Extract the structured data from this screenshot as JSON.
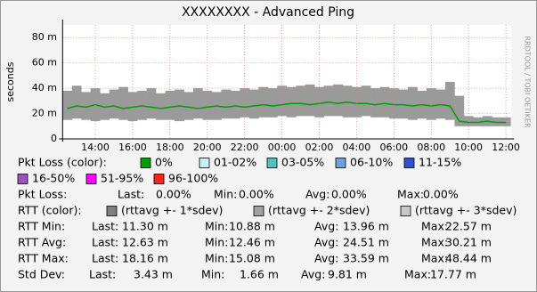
{
  "chart_data": {
    "type": "band-line",
    "title": "XXXXXXXX - Advanced Ping",
    "y_label": "seconds",
    "watermark": "RRDTOOL / TOBI OETIKER",
    "categories": [
      null,
      null,
      null,
      "14:00",
      null,
      null,
      null,
      "16:00",
      null,
      null,
      null,
      "18:00",
      null,
      null,
      null,
      "20:00",
      null,
      null,
      null,
      "22:00",
      null,
      null,
      null,
      "00:00",
      null,
      null,
      null,
      "02:00",
      null,
      null,
      null,
      "04:00",
      null,
      null,
      null,
      "06:00",
      null,
      null,
      null,
      "08:00",
      null,
      null,
      null,
      "10:00",
      null,
      null,
      null,
      "12:00"
    ],
    "ylim": [
      0,
      90
    ],
    "yticks": [
      {
        "value": 0,
        "label": "0"
      },
      {
        "value": 20,
        "label": "20 m"
      },
      {
        "value": 40,
        "label": "40 m"
      },
      {
        "value": 60,
        "label": "60 m"
      },
      {
        "value": 80,
        "label": "80 m"
      }
    ],
    "grid": true,
    "band": {
      "color": "#9a9a9a",
      "low": [
        15,
        16,
        15,
        14,
        15,
        16,
        15,
        14,
        15,
        16,
        15,
        15,
        14,
        15,
        16,
        15,
        15,
        16,
        16,
        17,
        16,
        17,
        17,
        18,
        17,
        18,
        18,
        17,
        18,
        18,
        17,
        17,
        18,
        17,
        17,
        16,
        16,
        15,
        16,
        15,
        16,
        15,
        10,
        10,
        10,
        10,
        10,
        10
      ],
      "high": [
        38,
        42,
        37,
        40,
        36,
        39,
        41,
        37,
        38,
        40,
        36,
        38,
        39,
        37,
        40,
        38,
        37,
        39,
        38,
        40,
        39,
        41,
        40,
        42,
        41,
        42,
        43,
        41,
        42,
        43,
        42,
        41,
        42,
        40,
        41,
        40,
        39,
        41,
        38,
        40,
        39,
        45,
        34,
        18,
        17,
        18,
        17,
        17
      ]
    },
    "line": {
      "color": "#00a000",
      "values": [
        24,
        26,
        25,
        27,
        25,
        26,
        24,
        25,
        26,
        25,
        24,
        25,
        26,
        25,
        24,
        25,
        26,
        25,
        26,
        25,
        26,
        27,
        26,
        27,
        28,
        28,
        27,
        28,
        29,
        28,
        29,
        28,
        28,
        27,
        28,
        27,
        27,
        26,
        27,
        26,
        27,
        26,
        14,
        13,
        13,
        14,
        13,
        13
      ]
    }
  },
  "legend": {
    "loss_title": "Pkt Loss (color):",
    "loss_items": [
      {
        "label": "0%",
        "color": "#00a000"
      },
      {
        "label": "01-02%",
        "color": "#c8f0f0"
      },
      {
        "label": "03-05%",
        "color": "#50c0c0"
      },
      {
        "label": "06-10%",
        "color": "#70a0e0"
      },
      {
        "label": "11-15%",
        "color": "#3050d0"
      },
      {
        "label": "16-50%",
        "color": "#a050c0"
      },
      {
        "label": "51-95%",
        "color": "#ff00ff"
      },
      {
        "label": "96-100%",
        "color": "#ff2020"
      }
    ],
    "rtt_title": "RTT (color):",
    "rtt_items": [
      {
        "label": "(rttavg +- 1*sdev)",
        "color": "#808080"
      },
      {
        "label": "(rttavg +- 2*sdev)",
        "color": "#a0a0a0"
      },
      {
        "label": "(rttavg +- 3*sdev)",
        "color": "#c8c8c8"
      }
    ],
    "loss_stats": [
      "Pkt Loss:",
      "Last:",
      "0.00%",
      "Min:",
      "0.00%",
      "Avg:",
      "0.00%",
      "Max:",
      "0.00%"
    ],
    "rtt_stats": [
      [
        "RTT Min:",
        "Last:",
        "11.30 m",
        "Min:",
        "10.88 m",
        "Avg:",
        "13.96 m",
        "Max:",
        "22.57 m"
      ],
      [
        "RTT Avg:",
        "Last:",
        "12.63 m",
        "Min:",
        "12.46 m",
        "Avg:",
        "24.51 m",
        "Max:",
        "30.21 m"
      ],
      [
        "RTT Max:",
        "Last:",
        "18.16 m",
        "Min:",
        "15.08 m",
        "Avg:",
        "33.59 m",
        "Max:",
        "48.44 m"
      ],
      [
        "Std Dev:",
        "Last:",
        "3.43 m",
        "Min:",
        "1.66 m",
        "Avg:",
        "9.81 m",
        "Max:",
        "17.77 m"
      ]
    ]
  }
}
